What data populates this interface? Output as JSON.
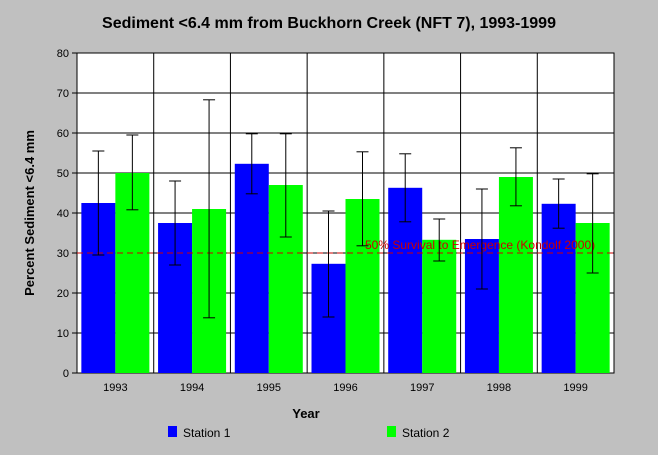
{
  "chart_data": {
    "type": "bar",
    "title": "Sediment <6.4 mm from Buckhorn Creek (NFT 7), 1993-1999",
    "xlabel": "Year",
    "ylabel": "Percent Sediment <6.4 mm",
    "ylim": [
      0,
      80
    ],
    "yticks": [
      0,
      10,
      20,
      30,
      40,
      50,
      60,
      70,
      80
    ],
    "grid": true,
    "legend_position": "bottom",
    "categories": [
      "1993",
      "1994",
      "1995",
      "1996",
      "1997",
      "1998",
      "1999"
    ],
    "series": [
      {
        "name": "Station 1",
        "color": "#0000ff",
        "values": [
          42.5,
          37.5,
          52.3,
          27.3,
          46.3,
          33.5,
          42.3
        ],
        "error_low": [
          29.5,
          27.0,
          44.8,
          14.0,
          37.8,
          21.0,
          36.2
        ],
        "error_high": [
          55.5,
          48.0,
          59.8,
          40.5,
          54.8,
          46.0,
          48.5
        ]
      },
      {
        "name": "Station 2",
        "color": "#00ff00",
        "values": [
          50.0,
          41.0,
          47.0,
          43.5,
          33.3,
          49.0,
          37.5
        ],
        "error_low": [
          40.8,
          13.8,
          34.0,
          31.8,
          28.0,
          41.8,
          25.0
        ],
        "error_high": [
          59.5,
          68.3,
          59.8,
          55.3,
          38.5,
          56.3,
          49.8
        ]
      }
    ],
    "reference_line": {
      "value": 30,
      "label": "50% Survival to Emergence (Kondolf 2000)",
      "color": "#cc0000"
    }
  }
}
